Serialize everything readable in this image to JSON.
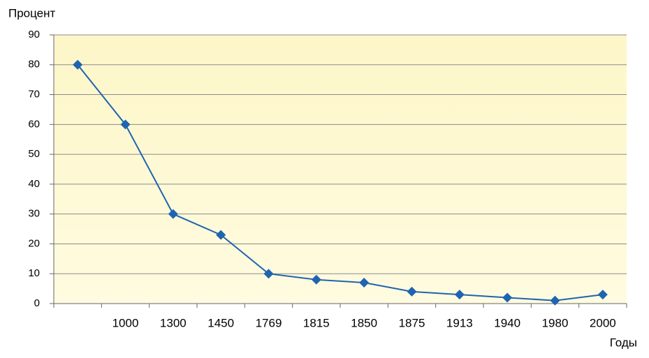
{
  "chart_data": {
    "type": "line",
    "y_label": "Процент",
    "x_label": "Годы",
    "categories": [
      null,
      "1000",
      "1300",
      "1450",
      "1769",
      "1815",
      "1850",
      "1875",
      "1913",
      "1940",
      "1980",
      "2000"
    ],
    "series": [
      {
        "color": "#1f64b0",
        "values": [
          80,
          60,
          30,
          23,
          10,
          8,
          7,
          4,
          3,
          2,
          1,
          3
        ]
      }
    ],
    "ylim": [
      0,
      90
    ],
    "yticks": [
      0,
      10,
      20,
      30,
      40,
      50,
      60,
      70,
      80,
      90
    ],
    "grid": true
  }
}
